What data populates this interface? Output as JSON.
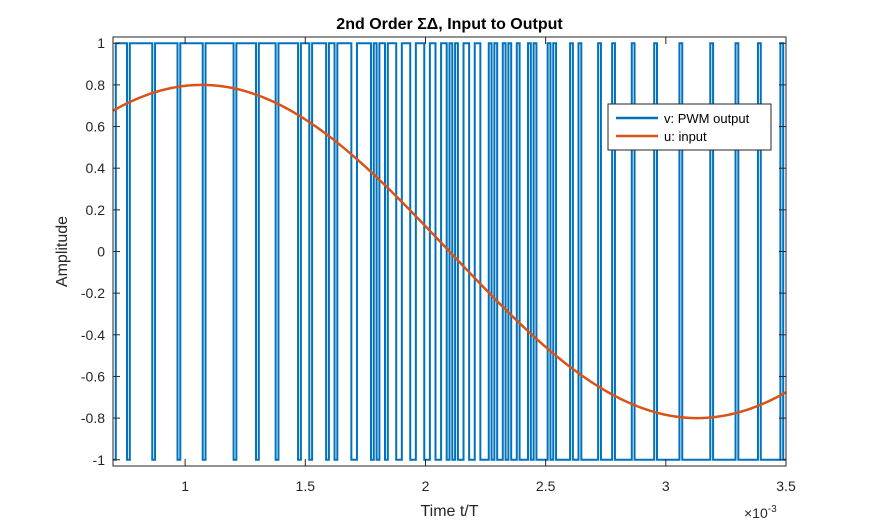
{
  "chart_data": {
    "type": "line",
    "title": "2nd Order ΣΔ, Input to Output",
    "xlabel": "Time t/T",
    "ylabel": "Amplitude",
    "x_multiplier": "×10",
    "x_multiplier_exponent": "-3",
    "xlim": [
      0.0007,
      0.0035
    ],
    "ylim": [
      -1.03,
      1.03
    ],
    "x_ticks": [
      0.001,
      0.0015,
      0.002,
      0.0025,
      0.003,
      0.0035
    ],
    "x_tick_labels": [
      "1",
      "1.5",
      "2",
      "2.5",
      "3",
      "3.5"
    ],
    "y_ticks": [
      1,
      0.8,
      0.6,
      0.4,
      0.2,
      0,
      -0.2,
      -0.4,
      -0.6,
      -0.8,
      -1
    ],
    "y_tick_labels": [
      "1",
      "0.8",
      "0.6",
      "0.4",
      "0.2",
      "0",
      "-0.2",
      "-0.4",
      "-0.6",
      "-0.8",
      "-1"
    ],
    "grid": false,
    "legend_position": "top-right",
    "series": [
      {
        "name": "v: PWM output",
        "color": "#0072BD",
        "kind": "pwm",
        "levels": [
          -1,
          1
        ],
        "approx_sample_count": 240
      },
      {
        "name": "u: input",
        "color": "#D95319",
        "kind": "sinusoid",
        "x": [
          0.0007,
          0.00085,
          0.001,
          0.00115,
          0.0013,
          0.0015,
          0.0017,
          0.0019,
          0.0021,
          0.0023,
          0.0025,
          0.0027,
          0.0029,
          0.0031,
          0.0033,
          0.0035
        ],
        "y": [
          0.69,
          0.77,
          0.8,
          0.79,
          0.74,
          0.6,
          0.41,
          0.19,
          -0.05,
          -0.28,
          -0.48,
          -0.64,
          -0.75,
          -0.8,
          -0.77,
          -0.66
        ]
      }
    ]
  }
}
